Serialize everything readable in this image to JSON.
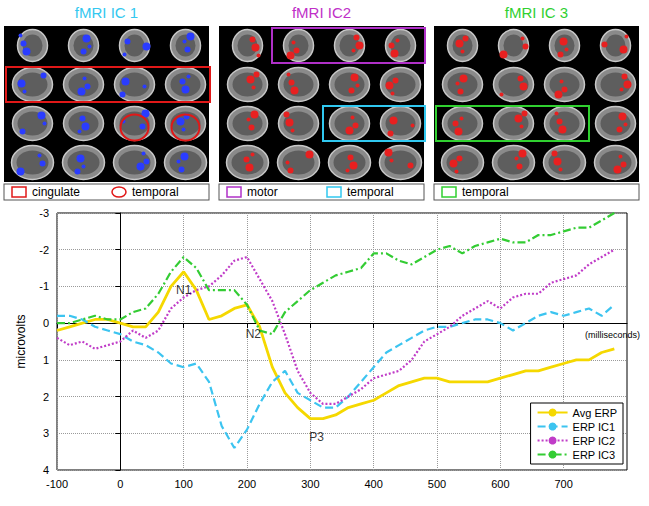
{
  "panels": [
    {
      "title": "fMRI IC 1",
      "title_color": "#33c8f0",
      "blob_color": "#2a3cff",
      "legend": [
        {
          "label": "cingulate",
          "shape": "rect",
          "color": "#e01818"
        },
        {
          "label": "temporal",
          "shape": "circle",
          "color": "#e01818"
        }
      ]
    },
    {
      "title": "fMRI IC2",
      "title_color": "#c030c8",
      "blob_color": "#e82020",
      "legend": [
        {
          "label": "motor",
          "shape": "rect",
          "color": "#b030c8"
        },
        {
          "label": "temporal",
          "shape": "rect",
          "color": "#30c8f0"
        }
      ]
    },
    {
      "title": "fMRI IC 3",
      "title_color": "#30d030",
      "blob_color": "#e82020",
      "legend": [
        {
          "label": "temporal",
          "shape": "rect",
          "color": "#30d030"
        }
      ]
    }
  ],
  "chart_data": {
    "type": "line",
    "xlabel": "(milliseconds)",
    "ylabel": "microvolts",
    "x": [
      -100,
      -80,
      -60,
      -40,
      -20,
      0,
      20,
      40,
      60,
      80,
      100,
      120,
      140,
      160,
      180,
      200,
      220,
      240,
      260,
      280,
      300,
      320,
      340,
      360,
      380,
      400,
      420,
      440,
      460,
      480,
      500,
      520,
      540,
      560,
      580,
      600,
      620,
      640,
      660,
      680,
      700,
      720,
      740,
      760,
      780
    ],
    "series": [
      {
        "name": "Avg ERP",
        "color": "#f5d800",
        "line_style": "solid",
        "values": [
          0.2,
          0.1,
          0.0,
          -0.1,
          -0.1,
          0.0,
          0.1,
          0.1,
          -0.3,
          -1.0,
          -1.4,
          -0.9,
          -0.1,
          -0.2,
          -0.4,
          -0.5,
          0.1,
          1.2,
          1.9,
          2.3,
          2.6,
          2.6,
          2.5,
          2.3,
          2.2,
          2.1,
          1.9,
          1.7,
          1.6,
          1.5,
          1.5,
          1.6,
          1.6,
          1.6,
          1.6,
          1.5,
          1.4,
          1.3,
          1.3,
          1.2,
          1.1,
          1.0,
          1.0,
          0.8,
          0.7
        ]
      },
      {
        "name": "ERP IC1",
        "color": "#3cc4f0",
        "line_style": "dashed",
        "values": [
          -0.2,
          -0.2,
          -0.1,
          0.1,
          0.2,
          0.3,
          0.5,
          0.6,
          0.8,
          1.1,
          1.2,
          1.1,
          1.6,
          2.8,
          3.4,
          2.9,
          2.2,
          1.6,
          1.3,
          1.9,
          2.1,
          2.3,
          2.3,
          2.0,
          1.6,
          1.2,
          0.8,
          0.6,
          0.4,
          0.2,
          0.1,
          0.1,
          0.0,
          -0.1,
          -0.1,
          0.0,
          0.2,
          0.0,
          -0.2,
          -0.3,
          -0.2,
          -0.3,
          -0.4,
          -0.2,
          -0.5
        ]
      },
      {
        "name": "ERP IC2",
        "color": "#c03cc8",
        "line_style": "dotted",
        "values": [
          0.4,
          0.6,
          0.5,
          0.7,
          0.6,
          0.5,
          0.2,
          0.4,
          0.2,
          -0.4,
          -0.7,
          -0.9,
          -1.0,
          -1.3,
          -1.7,
          -1.8,
          -1.2,
          -0.6,
          0.3,
          1.3,
          1.9,
          2.2,
          2.2,
          2.0,
          1.8,
          1.5,
          1.4,
          1.3,
          1.0,
          0.5,
          0.3,
          0.1,
          -0.2,
          -0.4,
          -0.6,
          -0.4,
          -0.7,
          -0.8,
          -0.8,
          -1.1,
          -1.2,
          -1.3,
          -1.6,
          -1.8,
          -2.0
        ]
      },
      {
        "name": "ERP IC3",
        "color": "#33cc33",
        "line_style": "dashdot",
        "values": [
          0.0,
          0.0,
          -0.1,
          -0.2,
          -0.1,
          -0.1,
          -0.3,
          -0.4,
          -0.8,
          -1.4,
          -1.8,
          -1.5,
          -0.9,
          -0.9,
          -0.9,
          -0.5,
          0.2,
          0.3,
          -0.3,
          -0.6,
          -0.9,
          -1.1,
          -1.3,
          -1.4,
          -1.5,
          -1.9,
          -1.9,
          -1.7,
          -1.6,
          -1.8,
          -2.0,
          -2.1,
          -1.9,
          -2.1,
          -2.2,
          -2.3,
          -2.2,
          -2.2,
          -2.4,
          -2.4,
          -2.5,
          -2.6,
          -2.6,
          -2.8,
          -3.0
        ]
      }
    ],
    "annotations": [
      {
        "text": "N1",
        "x": 100,
        "y": -0.9
      },
      {
        "text": "N2",
        "x": 210,
        "y": 0.3
      },
      {
        "text": "P3",
        "x": 310,
        "y": 3.1
      }
    ],
    "xlim": [
      -100,
      800
    ],
    "xticks": [
      -100,
      0,
      100,
      200,
      300,
      400,
      500,
      600,
      700
    ],
    "ylim": [
      -3,
      4
    ],
    "yticks": [
      -3,
      -2,
      -1,
      0,
      1,
      2,
      3,
      4
    ],
    "y_inverted": true,
    "grid": true,
    "legend": "lower right"
  }
}
